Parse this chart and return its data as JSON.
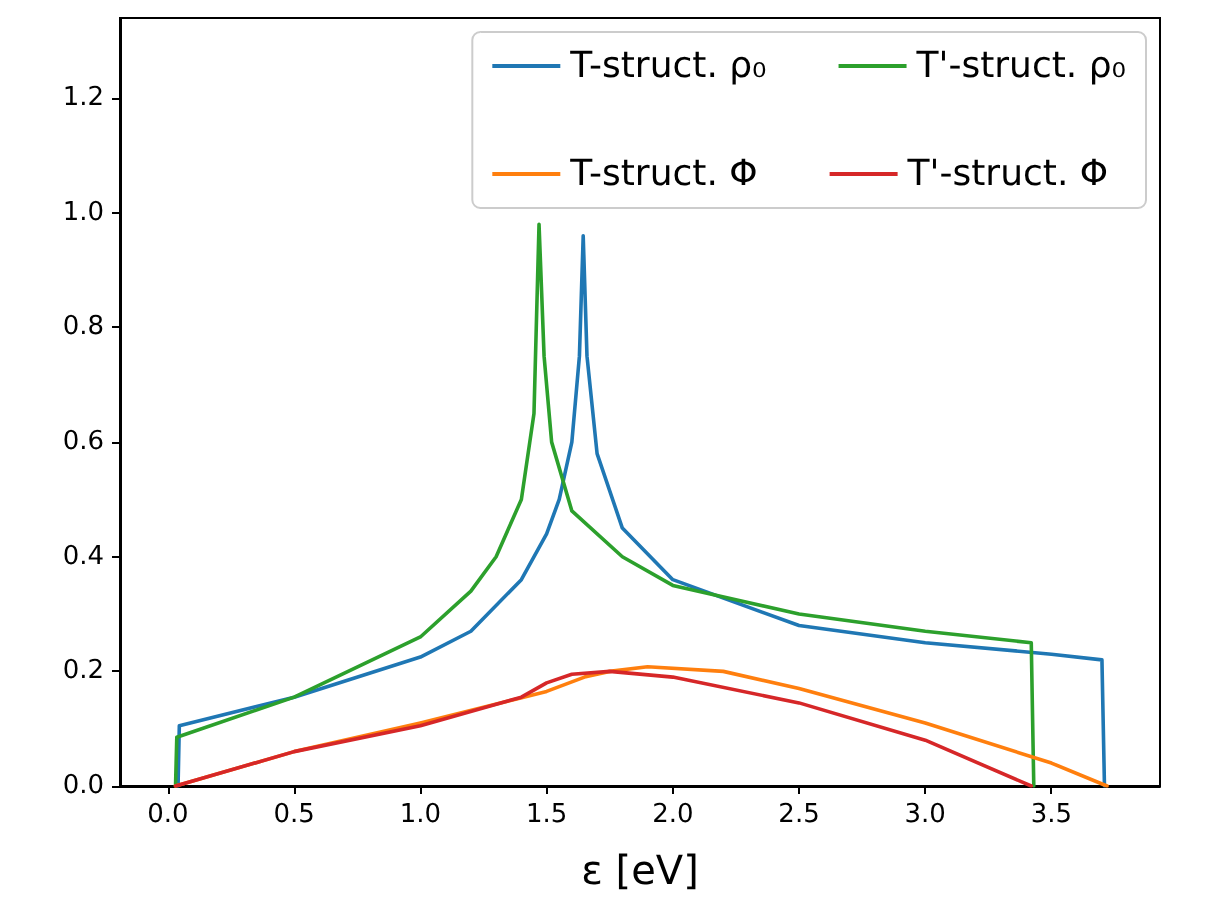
{
  "chart_data": {
    "type": "line",
    "xlabel": "ε [eV]",
    "xlim": [
      -0.19,
      3.93
    ],
    "ylim": [
      0,
      1.34
    ],
    "xticks": [
      {
        "value": 0,
        "label": "0.0"
      },
      0.5,
      {
        "value": 1,
        "label": "1.0"
      },
      1.5,
      {
        "value": 2,
        "label": "2.0"
      },
      2.5,
      {
        "value": 3,
        "label": "3.0"
      },
      3.5
    ],
    "yticks": [
      {
        "value": 0,
        "label": "0.0"
      },
      0.2,
      0.4,
      0.6,
      0.8,
      {
        "value": 1,
        "label": "1.0"
      },
      1.2
    ],
    "grid": false,
    "legend": "top right",
    "marker": "none",
    "line_style": "solid",
    "series": [
      {
        "name": "T-struct. ρ₀",
        "color": "#1f77b4",
        "x": [
          0.04,
          0.045,
          0.5,
          1.0,
          1.2,
          1.4,
          1.5,
          1.55,
          1.6,
          1.63,
          1.645,
          1.66,
          1.7,
          1.8,
          2.0,
          2.5,
          3.0,
          3.5,
          3.7,
          3.71
        ],
        "values": [
          0,
          0.105,
          0.155,
          0.225,
          0.27,
          0.36,
          0.44,
          0.5,
          0.6,
          0.75,
          0.96,
          0.75,
          0.58,
          0.45,
          0.36,
          0.28,
          0.25,
          0.23,
          0.22,
          0
        ]
      },
      {
        "name": "T'-struct. ρ₀",
        "color": "#2ca02c",
        "x": [
          0.03,
          0.035,
          0.5,
          1.0,
          1.2,
          1.3,
          1.4,
          1.45,
          1.47,
          1.49,
          1.52,
          1.6,
          1.8,
          2.0,
          2.5,
          3.0,
          3.42,
          3.43
        ],
        "values": [
          0,
          0.085,
          0.155,
          0.26,
          0.34,
          0.4,
          0.5,
          0.65,
          0.98,
          0.75,
          0.6,
          0.48,
          0.4,
          0.35,
          0.3,
          0.27,
          0.25,
          0
        ]
      },
      {
        "name": "T-struct. Φ",
        "color": "#ff7f0e",
        "x": [
          0.03,
          0.5,
          1.0,
          1.5,
          1.65,
          1.75,
          1.9,
          2.2,
          2.5,
          3.0,
          3.5,
          3.72
        ],
        "values": [
          0,
          0.06,
          0.11,
          0.165,
          0.19,
          0.2,
          0.208,
          0.2,
          0.17,
          0.11,
          0.04,
          0
        ]
      },
      {
        "name": "T'-struct. Φ",
        "color": "#d62728",
        "x": [
          0.03,
          0.5,
          1.0,
          1.4,
          1.5,
          1.6,
          1.75,
          2.0,
          2.5,
          3.0,
          3.42
        ],
        "values": [
          0,
          0.06,
          0.105,
          0.155,
          0.18,
          0.195,
          0.2,
          0.19,
          0.145,
          0.08,
          0
        ]
      }
    ]
  }
}
